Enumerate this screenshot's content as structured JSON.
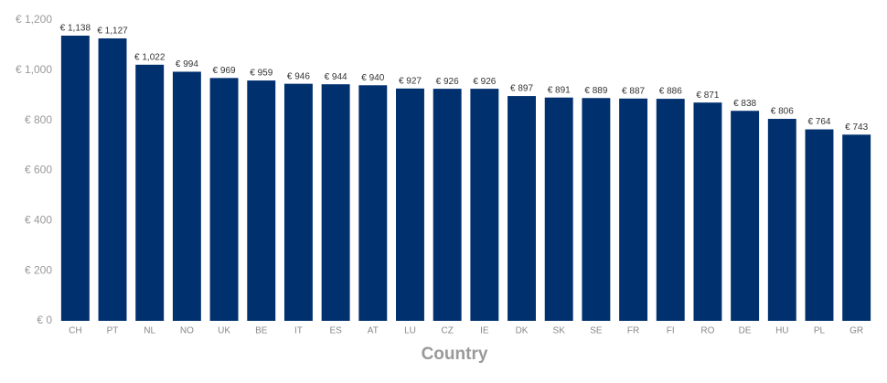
{
  "chart_data": {
    "type": "bar",
    "x_label": "Country",
    "categories": [
      "CH",
      "PT",
      "NL",
      "NO",
      "UK",
      "BE",
      "IT",
      "ES",
      "AT",
      "LU",
      "CZ",
      "IE",
      "DK",
      "SK",
      "SE",
      "FR",
      "FI",
      "RO",
      "DE",
      "HU",
      "PL",
      "GR"
    ],
    "values": [
      1138,
      1127,
      1022,
      994,
      969,
      959,
      946,
      944,
      940,
      927,
      926,
      926,
      897,
      891,
      889,
      887,
      886,
      871,
      838,
      806,
      764,
      743
    ],
    "value_labels": [
      "€ 1,138",
      "€ 1,127",
      "€ 1,022",
      "€ 994",
      "€ 969",
      "€ 959",
      "€ 946",
      "€ 944",
      "€ 940",
      "€ 927",
      "€ 926",
      "€ 926",
      "€ 897",
      "€ 891",
      "€ 889",
      "€ 887",
      "€ 886",
      "€ 871",
      "€ 838",
      "€ 806",
      "€ 764",
      "€ 743"
    ],
    "color": "#00306e",
    "ylim": [
      0,
      1200
    ],
    "yticks": [
      {
        "value": 0,
        "label": "€ 0"
      },
      {
        "value": 200,
        "label": "€ 200"
      },
      {
        "value": 400,
        "label": "€ 400"
      },
      {
        "value": 600,
        "label": "€ 600"
      },
      {
        "value": 800,
        "label": "€ 800"
      },
      {
        "value": 1000,
        "label": "€ 1,000"
      },
      {
        "value": 1200,
        "label": "€ 1,200"
      }
    ],
    "grid": false
  }
}
